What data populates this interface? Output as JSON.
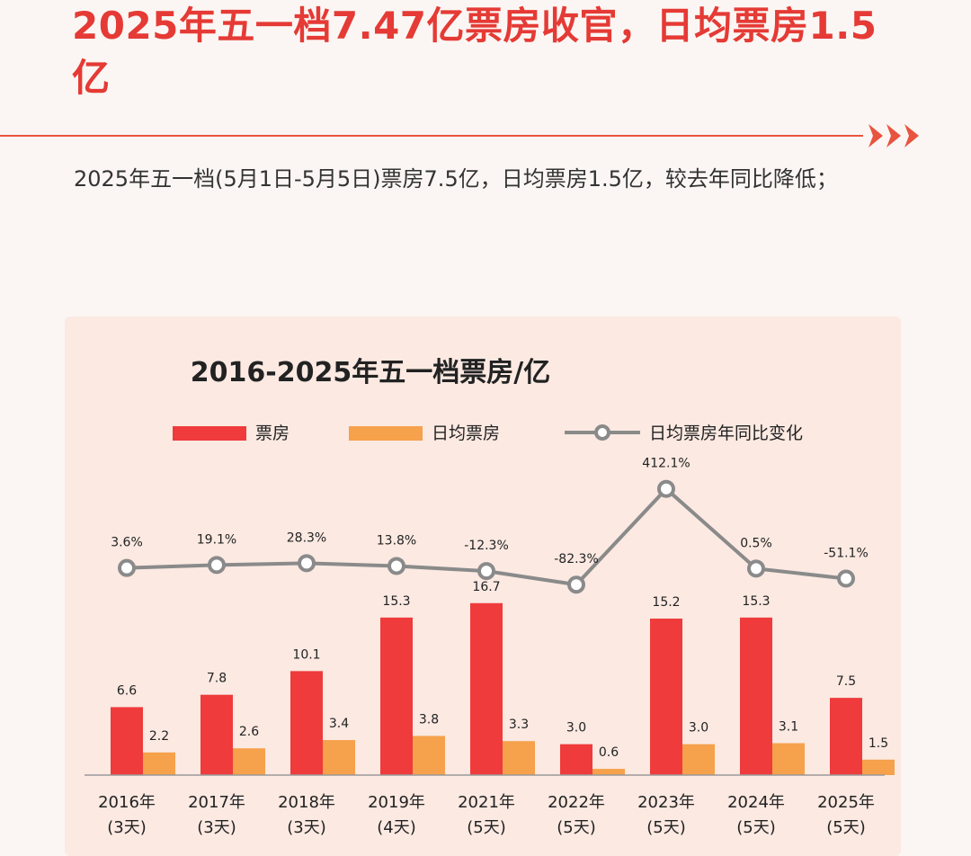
{
  "headline": "2025年五一档7.47亿票房收官，日均票房1.5亿",
  "intro": "2025年五一档(5月1日-5月5日)票房7.5亿，日均票房1.5亿，较去年同比降低；",
  "colors": {
    "accent": "#e53a35",
    "box_office": "#ef3b3b",
    "daily": "#f6a14b",
    "line": "#8a8a8a"
  },
  "chart_data": {
    "type": "bar",
    "title": "2016-2025年五一档票房/亿",
    "legend_position": "top",
    "categories": [
      "2016年",
      "2017年",
      "2018年",
      "2019年",
      "2021年",
      "2022年",
      "2023年",
      "2024年",
      "2025年"
    ],
    "category_notes": [
      "(3天)",
      "(3天)",
      "(3天)",
      "(4天)",
      "(5天)",
      "(5天)",
      "(5天)",
      "(5天)",
      "(5天)"
    ],
    "series": [
      {
        "name": "票房",
        "type": "bar",
        "values": [
          6.6,
          7.8,
          10.1,
          15.3,
          16.7,
          3.0,
          15.2,
          15.3,
          7.5
        ],
        "labels": [
          "6.6",
          "7.8",
          "10.1",
          "15.3",
          "16.7",
          "3.0",
          "15.2",
          "15.3",
          "7.5"
        ]
      },
      {
        "name": "日均票房",
        "type": "bar",
        "values": [
          2.2,
          2.6,
          3.4,
          3.8,
          3.3,
          0.6,
          3.0,
          3.1,
          1.5
        ],
        "labels": [
          "2.2",
          "2.6",
          "3.4",
          "3.8",
          "3.3",
          "0.6",
          "3.0",
          "3.1",
          "1.5"
        ]
      },
      {
        "name": "日均票房年同比变化",
        "type": "line",
        "values": [
          3.6,
          19.1,
          28.3,
          13.8,
          -12.3,
          -82.3,
          412.1,
          0.5,
          -51.1
        ],
        "labels": [
          "3.6%",
          "19.1%",
          "28.3%",
          "13.8%",
          "-12.3%",
          "-82.3%",
          "412.1%",
          "0.5%",
          "-51.1%"
        ]
      }
    ],
    "ylim_bars": [
      0,
      18
    ],
    "ylim_line": [
      -100,
      420
    ],
    "grid": false
  }
}
